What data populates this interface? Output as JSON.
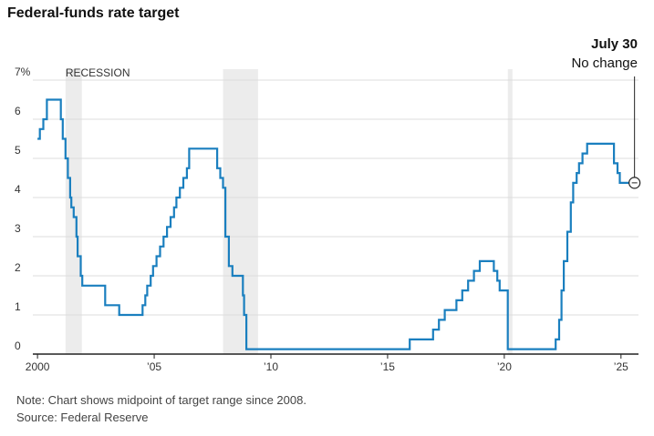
{
  "title": "Federal-funds rate target",
  "callout": {
    "date": "July 30",
    "text": "No change"
  },
  "notes": {
    "note": "Note: Chart shows midpoint of target range since 2008.",
    "source": "Source: Federal Reserve"
  },
  "chart_data": {
    "type": "line",
    "title": "Federal-funds rate target",
    "ylim": [
      0,
      7
    ],
    "yticks": [
      0,
      1,
      2,
      3,
      4,
      5,
      6,
      7
    ],
    "ytick_labels": [
      "0",
      "1",
      "2",
      "3",
      "4",
      "5",
      "6",
      "7%"
    ],
    "xlim": [
      1999.8,
      2025.75
    ],
    "xticks": [
      2000,
      2005,
      2010,
      2015,
      2020,
      2025
    ],
    "xtick_labels": [
      "2000",
      "’05",
      "’10",
      "’15",
      "’20",
      "’25"
    ],
    "grid": true,
    "recessions": [
      {
        "start": 2001.2,
        "end": 2001.9,
        "label": "RECESSION"
      },
      {
        "start": 2007.95,
        "end": 2009.45,
        "label": ""
      },
      {
        "start": 2020.15,
        "end": 2020.35,
        "label": ""
      }
    ],
    "colors": {
      "line": "#1a7fbf",
      "recession": "#ececec",
      "grid": "#dddddd",
      "axis": "#222222"
    },
    "series": [
      {
        "step": true,
        "points": [
          [
            2000.0,
            5.5
          ],
          [
            2000.1,
            5.75
          ],
          [
            2000.25,
            6.0
          ],
          [
            2000.4,
            6.5
          ],
          [
            2001.0,
            6.0
          ],
          [
            2001.08,
            5.5
          ],
          [
            2001.2,
            5.0
          ],
          [
            2001.3,
            4.5
          ],
          [
            2001.4,
            4.0
          ],
          [
            2001.45,
            3.75
          ],
          [
            2001.55,
            3.5
          ],
          [
            2001.67,
            3.0
          ],
          [
            2001.72,
            2.5
          ],
          [
            2001.85,
            2.0
          ],
          [
            2001.92,
            1.75
          ],
          [
            2002.9,
            1.25
          ],
          [
            2003.5,
            1.0
          ],
          [
            2004.5,
            1.25
          ],
          [
            2004.62,
            1.5
          ],
          [
            2004.7,
            1.75
          ],
          [
            2004.85,
            2.0
          ],
          [
            2004.95,
            2.25
          ],
          [
            2005.1,
            2.5
          ],
          [
            2005.25,
            2.75
          ],
          [
            2005.4,
            3.0
          ],
          [
            2005.55,
            3.25
          ],
          [
            2005.7,
            3.5
          ],
          [
            2005.85,
            3.75
          ],
          [
            2005.95,
            4.0
          ],
          [
            2006.1,
            4.25
          ],
          [
            2006.25,
            4.5
          ],
          [
            2006.4,
            4.75
          ],
          [
            2006.5,
            5.25
          ],
          [
            2007.7,
            4.75
          ],
          [
            2007.83,
            4.5
          ],
          [
            2007.95,
            4.25
          ],
          [
            2008.05,
            3.0
          ],
          [
            2008.2,
            2.25
          ],
          [
            2008.35,
            2.0
          ],
          [
            2008.8,
            1.5
          ],
          [
            2008.85,
            1.0
          ],
          [
            2008.95,
            0.125
          ],
          [
            2015.95,
            0.375
          ],
          [
            2016.95,
            0.625
          ],
          [
            2017.2,
            0.875
          ],
          [
            2017.45,
            1.125
          ],
          [
            2017.95,
            1.375
          ],
          [
            2018.2,
            1.625
          ],
          [
            2018.45,
            1.875
          ],
          [
            2018.7,
            2.125
          ],
          [
            2018.95,
            2.375
          ],
          [
            2019.55,
            2.125
          ],
          [
            2019.7,
            1.875
          ],
          [
            2019.8,
            1.625
          ],
          [
            2020.15,
            0.125
          ],
          [
            2022.2,
            0.375
          ],
          [
            2022.35,
            0.875
          ],
          [
            2022.45,
            1.625
          ],
          [
            2022.55,
            2.375
          ],
          [
            2022.7,
            3.125
          ],
          [
            2022.85,
            3.875
          ],
          [
            2022.95,
            4.375
          ],
          [
            2023.1,
            4.625
          ],
          [
            2023.2,
            4.875
          ],
          [
            2023.35,
            5.125
          ],
          [
            2023.55,
            5.375
          ],
          [
            2024.7,
            4.875
          ],
          [
            2024.85,
            4.625
          ],
          [
            2024.95,
            4.375
          ],
          [
            2025.58,
            4.375
          ]
        ]
      }
    ],
    "annotation": {
      "x": 2025.58,
      "y": 4.375
    }
  }
}
